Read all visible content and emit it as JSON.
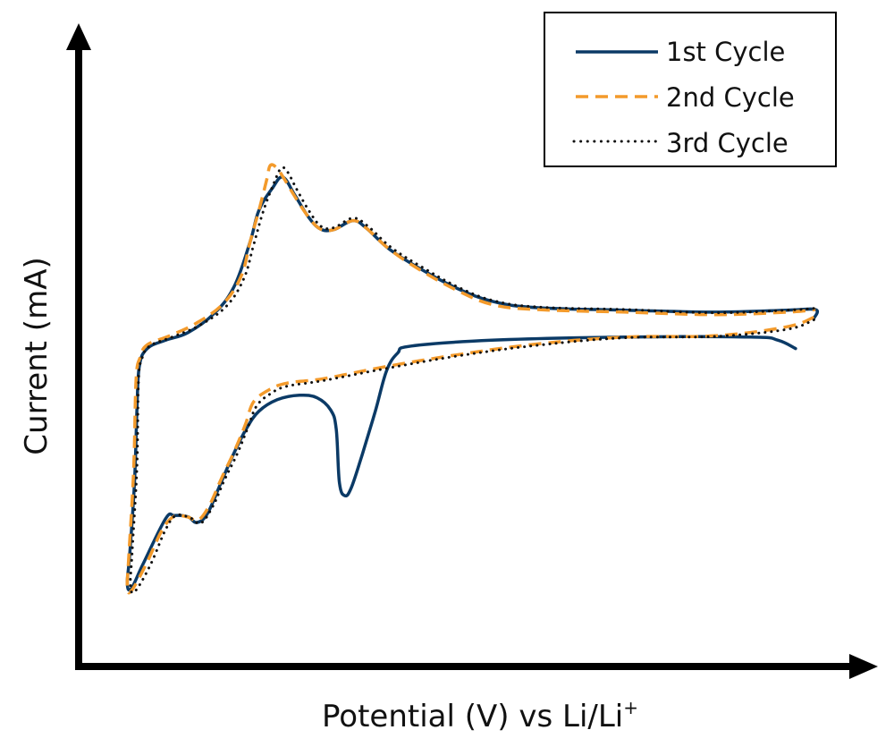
{
  "chart_data": {
    "type": "line",
    "title": "",
    "xlabel": "Potential (V) vs Li/Li",
    "xlabel_superscript": "+",
    "ylabel": "Current (mA)",
    "xlim": [
      0,
      100
    ],
    "ylim": [
      0,
      100
    ],
    "units_note": "axes carry no tick labels; values are in relative units",
    "grid": false,
    "legend_position": "top-right",
    "series": [
      {
        "name": "1st Cycle",
        "style": "solid",
        "color": "#0b3a66",
        "points": [
          [
            89.9,
            49.7
          ],
          [
            87.7,
            51.0
          ],
          [
            84.3,
            51.5
          ],
          [
            68.6,
            51.5
          ],
          [
            51.8,
            51.0
          ],
          [
            41.7,
            50.1
          ],
          [
            40.0,
            49.0
          ],
          [
            38.6,
            46.2
          ],
          [
            37.2,
            39.9
          ],
          [
            35.5,
            32.9
          ],
          [
            34.2,
            28.0
          ],
          [
            33.4,
            26.7
          ],
          [
            32.7,
            28.7
          ],
          [
            32.3,
            37.1
          ],
          [
            31.6,
            40.1
          ],
          [
            29.9,
            42.0
          ],
          [
            27.7,
            42.4
          ],
          [
            24.9,
            41.7
          ],
          [
            22.6,
            39.9
          ],
          [
            21.0,
            37.1
          ],
          [
            19.3,
            32.9
          ],
          [
            17.6,
            28.0
          ],
          [
            16.1,
            23.8
          ],
          [
            14.8,
            22.5
          ],
          [
            13.7,
            23.4
          ],
          [
            12.0,
            23.6
          ],
          [
            10.9,
            23.1
          ],
          [
            8.1,
            16.1
          ],
          [
            6.6,
            12.2
          ],
          [
            6.1,
            13.0
          ],
          [
            6.4,
            17.5
          ],
          [
            7.0,
            28.7
          ],
          [
            7.3,
            39.9
          ],
          [
            7.6,
            46.9
          ],
          [
            8.6,
            49.7
          ],
          [
            10.9,
            51.0
          ],
          [
            13.7,
            52.2
          ],
          [
            17.0,
            55.2
          ],
          [
            19.5,
            59.4
          ],
          [
            21.5,
            66.4
          ],
          [
            22.6,
            71.3
          ],
          [
            24.3,
            74.8
          ],
          [
            25.6,
            76.5
          ],
          [
            27.1,
            73.7
          ],
          [
            28.8,
            70.3
          ],
          [
            30.3,
            68.4
          ],
          [
            32.0,
            68.3
          ],
          [
            34.4,
            69.7
          ],
          [
            36.1,
            68.5
          ],
          [
            38.9,
            65.3
          ],
          [
            42.8,
            62.2
          ],
          [
            47.3,
            59.2
          ],
          [
            51.8,
            57.1
          ],
          [
            57.4,
            56.1
          ],
          [
            68.6,
            55.7
          ],
          [
            79.8,
            55.4
          ],
          [
            88.8,
            55.7
          ],
          [
            92.4,
            55.8
          ],
          [
            92.2,
            54.4
          ]
        ]
      },
      {
        "name": "2nd Cycle",
        "style": "dashed",
        "color": "#f39a2b",
        "points": [
          [
            92.2,
            54.6
          ],
          [
            88.8,
            53.1
          ],
          [
            79.8,
            51.7
          ],
          [
            68.6,
            51.5
          ],
          [
            57.4,
            50.4
          ],
          [
            47.3,
            48.7
          ],
          [
            38.6,
            46.9
          ],
          [
            30.7,
            45.0
          ],
          [
            26.1,
            44.3
          ],
          [
            23.8,
            43.2
          ],
          [
            21.9,
            41.3
          ],
          [
            20.9,
            37.8
          ],
          [
            19.5,
            33.6
          ],
          [
            17.9,
            29.4
          ],
          [
            16.4,
            25.2
          ],
          [
            15.0,
            22.9
          ],
          [
            13.6,
            23.4
          ],
          [
            12.0,
            23.5
          ],
          [
            10.5,
            21.4
          ],
          [
            8.5,
            16.1
          ],
          [
            6.7,
            12.0
          ],
          [
            6.1,
            12.3
          ],
          [
            6.3,
            17.5
          ],
          [
            6.9,
            30.8
          ],
          [
            7.2,
            44.8
          ],
          [
            7.7,
            48.3
          ],
          [
            8.6,
            50.3
          ],
          [
            11.4,
            51.7
          ],
          [
            14.8,
            53.7
          ],
          [
            18.2,
            56.8
          ],
          [
            20.4,
            61.1
          ],
          [
            21.5,
            66.4
          ],
          [
            22.6,
            71.3
          ],
          [
            23.6,
            76.2
          ],
          [
            24.0,
            78.3
          ],
          [
            24.8,
            78.0
          ],
          [
            25.8,
            76.2
          ],
          [
            27.1,
            73.5
          ],
          [
            28.8,
            70.3
          ],
          [
            30.3,
            68.4
          ],
          [
            32.0,
            68.3
          ],
          [
            34.4,
            69.7
          ],
          [
            36.1,
            68.5
          ],
          [
            38.9,
            65.3
          ],
          [
            42.8,
            62.0
          ],
          [
            47.3,
            58.9
          ],
          [
            51.8,
            56.6
          ],
          [
            57.4,
            55.8
          ],
          [
            68.6,
            55.4
          ],
          [
            79.8,
            55.0
          ],
          [
            88.8,
            55.4
          ],
          [
            92.4,
            55.8
          ]
        ]
      },
      {
        "name": "3rd Cycle",
        "style": "dotted",
        "color": "#111111",
        "points": [
          [
            92.2,
            54.2
          ],
          [
            88.8,
            52.7
          ],
          [
            79.8,
            51.6
          ],
          [
            68.6,
            51.4
          ],
          [
            57.4,
            50.2
          ],
          [
            47.3,
            48.5
          ],
          [
            38.6,
            46.6
          ],
          [
            30.7,
            44.7
          ],
          [
            26.1,
            43.8
          ],
          [
            24.0,
            42.6
          ],
          [
            22.3,
            40.7
          ],
          [
            21.2,
            37.3
          ],
          [
            19.9,
            33.3
          ],
          [
            18.3,
            29.2
          ],
          [
            16.8,
            25.0
          ],
          [
            15.3,
            22.4
          ],
          [
            13.9,
            23.3
          ],
          [
            12.2,
            23.6
          ],
          [
            10.9,
            21.4
          ],
          [
            9.0,
            15.9
          ],
          [
            7.1,
            11.8
          ],
          [
            6.5,
            12.6
          ],
          [
            6.7,
            17.8
          ],
          [
            7.3,
            31.0
          ],
          [
            7.5,
            44.5
          ],
          [
            7.9,
            48.0
          ],
          [
            8.9,
            50.1
          ],
          [
            11.7,
            51.5
          ],
          [
            15.1,
            53.3
          ],
          [
            18.5,
            56.3
          ],
          [
            20.7,
            60.6
          ],
          [
            21.9,
            65.7
          ],
          [
            23.1,
            71.0
          ],
          [
            24.5,
            75.6
          ],
          [
            25.4,
            77.9
          ],
          [
            26.2,
            77.3
          ],
          [
            27.3,
            74.7
          ],
          [
            28.9,
            71.2
          ],
          [
            30.4,
            68.8
          ],
          [
            32.0,
            68.6
          ],
          [
            34.4,
            70.1
          ],
          [
            36.3,
            68.8
          ],
          [
            39.2,
            65.5
          ],
          [
            43.1,
            62.4
          ],
          [
            47.6,
            59.3
          ],
          [
            52.0,
            57.2
          ],
          [
            57.6,
            56.2
          ],
          [
            68.6,
            55.8
          ],
          [
            79.8,
            55.3
          ],
          [
            88.8,
            55.7
          ],
          [
            92.4,
            56.0
          ]
        ]
      }
    ]
  }
}
